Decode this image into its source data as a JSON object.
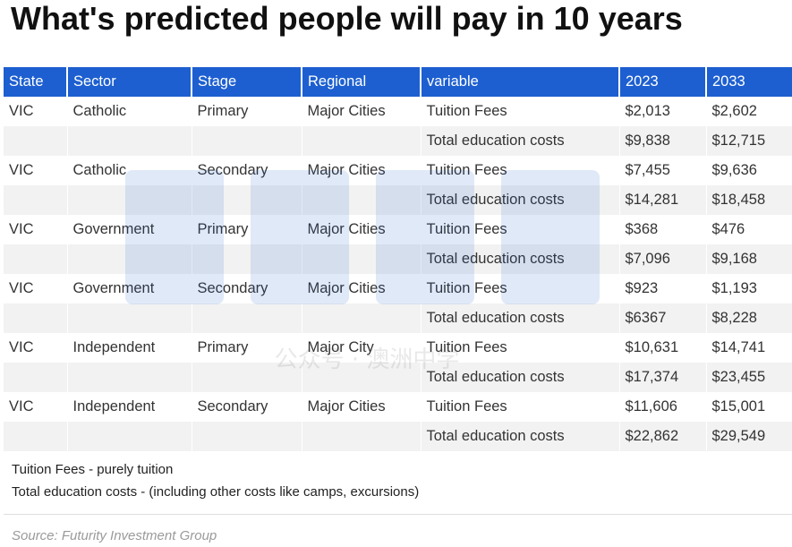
{
  "title": "What's predicted people will pay in 10 years",
  "table": {
    "headers": [
      "State",
      "Sector",
      "Stage",
      "Regional",
      "variable",
      "2023",
      "2033"
    ],
    "rows": [
      [
        "VIC",
        "Catholic",
        "Primary",
        "Major Cities",
        "Tuition Fees",
        "$2,013",
        "$2,602"
      ],
      [
        "",
        "",
        "",
        "",
        "Total education costs",
        "$9,838",
        "$12,715"
      ],
      [
        "VIC",
        "Catholic",
        "Secondary",
        "Major Cities",
        "Tuition Fees",
        "$7,455",
        "$9,636"
      ],
      [
        "",
        "",
        "",
        "",
        "Total education costs",
        "$14,281",
        "$18,458"
      ],
      [
        "VIC",
        "Government",
        "Primary",
        "Major Cities",
        "Tuition Fees",
        "$368",
        "$476"
      ],
      [
        "",
        "",
        "",
        "",
        "Total education costs",
        "$7,096",
        "$9,168"
      ],
      [
        "VIC",
        "Government",
        "Secondary",
        "Major Cities",
        "Tuition Fees",
        "$923",
        "$1,193"
      ],
      [
        "",
        "",
        "",
        "",
        "Total education costs",
        "$6367",
        "$8,228"
      ],
      [
        "VIC",
        "Independent",
        "Primary",
        "Major City",
        "Tuition Fees",
        "$10,631",
        "$14,741"
      ],
      [
        "",
        "",
        "",
        "",
        "Total education costs",
        "$17,374",
        "$23,455"
      ],
      [
        "VIC",
        "Independent",
        "Secondary",
        "Major Cities",
        "Tuition Fees",
        "$11,606",
        "$15,001"
      ],
      [
        "",
        "",
        "",
        "",
        "Total education costs",
        "$22,862",
        "$29,549"
      ]
    ]
  },
  "notes": [
    "Tuition Fees - purely tuition",
    "Total education costs - (including other costs like camps, excursions)"
  ],
  "source": "Source: Futurity Investment Group",
  "watermark": {
    "caption": "公众号 · 澳洲中学"
  },
  "colors": {
    "header_bg": "#1d5fd0",
    "header_text": "#ffffff",
    "stripe": "#f2f2f2",
    "source_text": "#9a9a9a"
  }
}
